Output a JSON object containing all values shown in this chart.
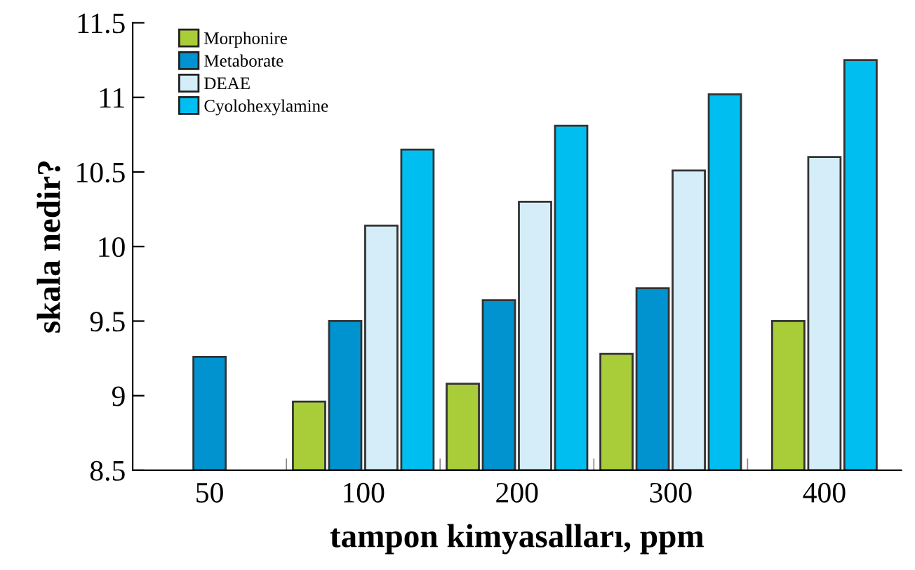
{
  "chart_data": {
    "type": "bar",
    "xlabel": "tampon kimyasalları, ppm",
    "ylabel": "skala nedir?",
    "categories": [
      "50",
      "100",
      "200",
      "300",
      "400"
    ],
    "series": [
      {
        "name": "Morphonire",
        "color": "#a8cd39",
        "values": [
          null,
          8.96,
          9.08,
          9.28,
          9.5
        ]
      },
      {
        "name": "Metaborate",
        "color": "#0093d0",
        "values": [
          9.26,
          9.5,
          9.64,
          9.72,
          null
        ]
      },
      {
        "name": "DEAE",
        "color": "#d4edf9",
        "values": [
          null,
          10.14,
          10.3,
          10.51,
          10.6
        ]
      },
      {
        "name": "Cyolohexylamine",
        "color": "#00bff0",
        "values": [
          null,
          10.65,
          10.81,
          11.02,
          11.25
        ]
      }
    ],
    "ylim": [
      8.5,
      11.5
    ],
    "yticks": [
      8.5,
      9,
      9.5,
      10,
      10.5,
      11,
      11.5
    ],
    "grid": false,
    "legend": "top left"
  }
}
